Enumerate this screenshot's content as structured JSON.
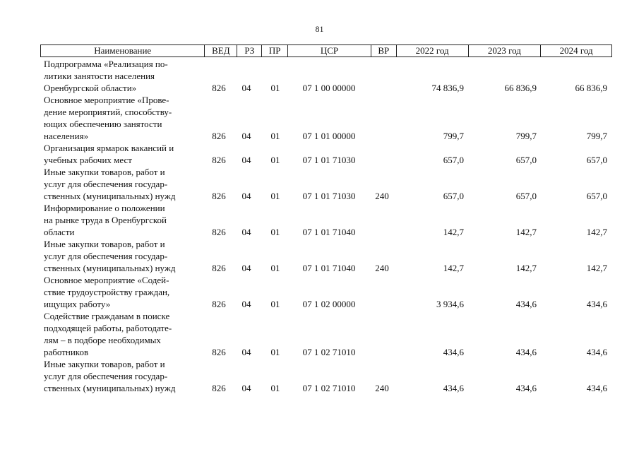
{
  "page_number": "81",
  "headers": {
    "name": "Наименование",
    "ved": "ВЕД",
    "rz": "РЗ",
    "pr": "ПР",
    "csr": "ЦСР",
    "vr": "ВР",
    "y2022": "2022 год",
    "y2023": "2023 год",
    "y2024": "2024 год"
  },
  "rows": [
    {
      "name": "Подпрограмма «Реализация по-\nлитики занятости населения\nОренбургской области»",
      "ved": "826",
      "rz": "04",
      "pr": "01",
      "csr": "07 1 00 00000",
      "vr": "",
      "y2022": "74 836,9",
      "y2023": "66 836,9",
      "y2024": "66 836,9"
    },
    {
      "name": "Основное мероприятие «Прове-\nдение мероприятий, способству-\nющих обеспечению занятости\nнаселения»",
      "ved": "826",
      "rz": "04",
      "pr": "01",
      "csr": "07 1 01 00000",
      "vr": "",
      "y2022": "799,7",
      "y2023": "799,7",
      "y2024": "799,7"
    },
    {
      "name": "Организация ярмарок вакансий и\nучебных рабочих мест",
      "ved": "826",
      "rz": "04",
      "pr": "01",
      "csr": "07 1 01 71030",
      "vr": "",
      "y2022": "657,0",
      "y2023": "657,0",
      "y2024": "657,0"
    },
    {
      "name": "Иные закупки товаров, работ и\nуслуг для обеспечения государ-\nственных (муниципальных) нужд",
      "ved": "826",
      "rz": "04",
      "pr": "01",
      "csr": "07 1 01 71030",
      "vr": "240",
      "y2022": "657,0",
      "y2023": "657,0",
      "y2024": "657,0"
    },
    {
      "name": "Информирование о положении\nна рынке труда в Оренбургской\nобласти",
      "ved": "826",
      "rz": "04",
      "pr": "01",
      "csr": "07 1 01 71040",
      "vr": "",
      "y2022": "142,7",
      "y2023": "142,7",
      "y2024": "142,7"
    },
    {
      "name": "Иные закупки товаров, работ и\nуслуг для обеспечения государ-\nственных (муниципальных) нужд",
      "ved": "826",
      "rz": "04",
      "pr": "01",
      "csr": "07 1 01 71040",
      "vr": "240",
      "y2022": "142,7",
      "y2023": "142,7",
      "y2024": "142,7"
    },
    {
      "name": "Основное мероприятие «Содей-\nствие трудоустройству граждан,\nищущих работу»",
      "ved": "826",
      "rz": "04",
      "pr": "01",
      "csr": "07 1 02 00000",
      "vr": "",
      "y2022": "3 934,6",
      "y2023": "434,6",
      "y2024": "434,6"
    },
    {
      "name": "Содействие гражданам в поиске\nподходящей работы, работодате-\nлям – в подборе необходимых\nработников",
      "ved": "826",
      "rz": "04",
      "pr": "01",
      "csr": "07 1 02 71010",
      "vr": "",
      "y2022": "434,6",
      "y2023": "434,6",
      "y2024": "434,6"
    },
    {
      "name": "Иные закупки товаров, работ и\nуслуг для обеспечения государ-\nственных (муниципальных) нужд",
      "ved": "826",
      "rz": "04",
      "pr": "01",
      "csr": "07 1 02 71010",
      "vr": "240",
      "y2022": "434,6",
      "y2023": "434,6",
      "y2024": "434,6"
    }
  ]
}
